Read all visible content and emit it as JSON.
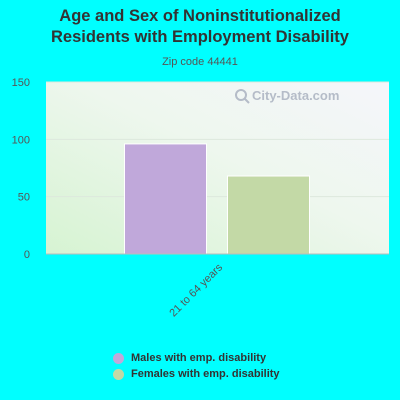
{
  "title_line1": "Age and Sex of Noninstitutionalized",
  "title_line2": "Residents with Employment Disability",
  "subtitle": "Zip code 44441",
  "watermark": "City-Data.com",
  "chart_data": {
    "type": "bar",
    "title": "Age and Sex of Noninstitutionalized Residents with Employment Disability",
    "subtitle": "Zip code 44441",
    "categories": [
      "21 to 64 years"
    ],
    "series": [
      {
        "name": "Males with emp. disability",
        "values": [
          96
        ],
        "color": "#C0A8DA"
      },
      {
        "name": "Females with emp. disability",
        "values": [
          68
        ],
        "color": "#C3D9A6"
      }
    ],
    "ylim": [
      0,
      150
    ],
    "yticks": [
      0,
      50,
      100,
      150
    ],
    "grid": true,
    "legend_position": "bottom"
  }
}
